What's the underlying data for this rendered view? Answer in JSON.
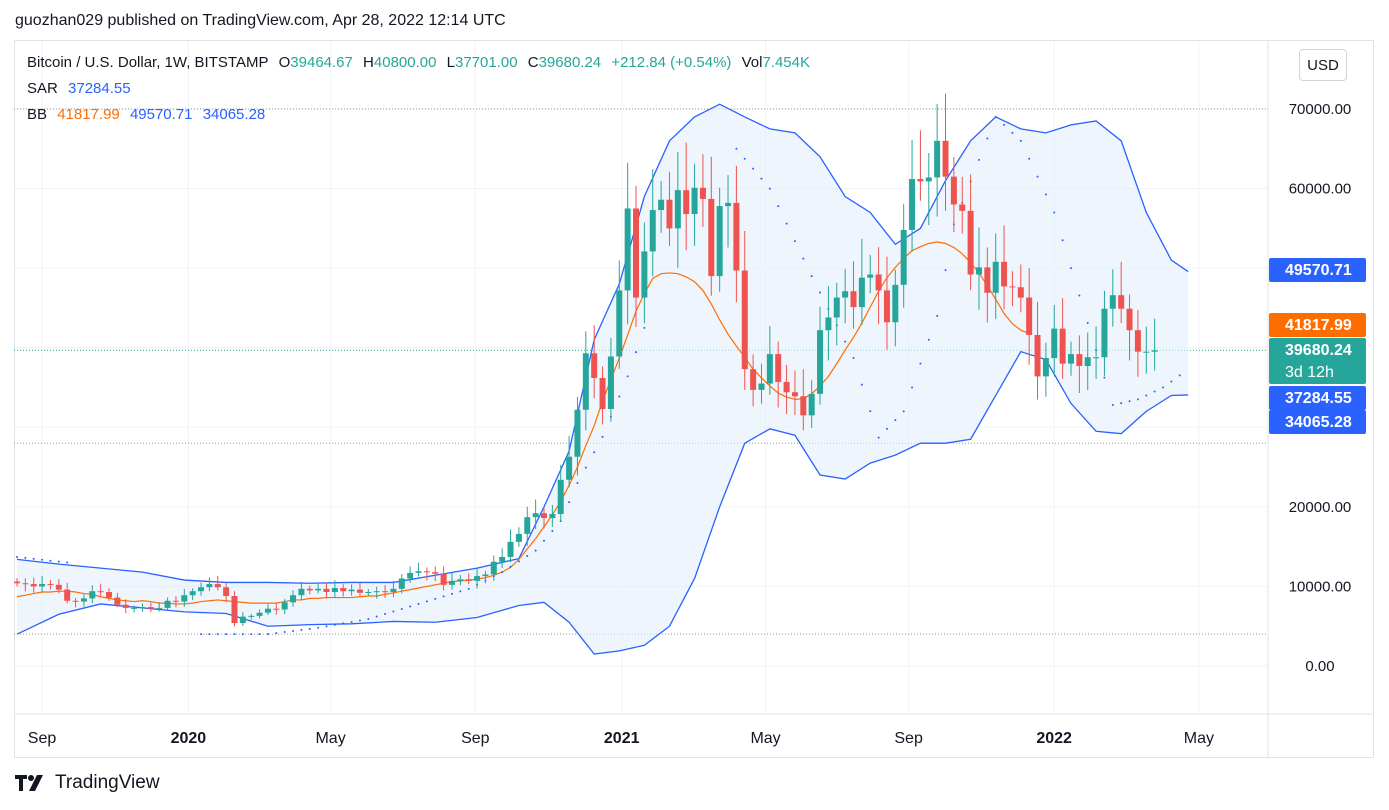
{
  "header": {
    "published": "guozhan029 published on TradingView.com, Apr 28, 2022 12:14 UTC"
  },
  "legend": {
    "symbol": "Bitcoin / U.S. Dollar, 1W, BITSTAMP",
    "o_label": "O",
    "o_value": "39464.67",
    "h_label": "H",
    "h_value": "40800.00",
    "l_label": "L",
    "l_value": "37701.00",
    "c_label": "C",
    "c_value": "39680.24",
    "change": "+212.84 (+0.54%)",
    "vol_label": "Vol",
    "vol_value": "7.454K",
    "sar_label": "SAR",
    "sar_value": "37284.55",
    "bb_label": "BB",
    "bb_mid": "41817.99",
    "bb_upper": "49570.71",
    "bb_lower": "34065.28"
  },
  "currency_button": "USD",
  "footer": {
    "brand": "TradingView"
  },
  "colors": {
    "up": "#26a69a",
    "down": "#ef5350",
    "bb_band": "#2962ff",
    "bb_basis": "#ff6d00",
    "sar": "#2962ff",
    "fill": "#e3eefa",
    "grid": "#f0f3fa",
    "axis_text": "#131722"
  },
  "chart_data": {
    "type": "candlestick",
    "interval": "1W",
    "y_ticks": [
      "70000.00",
      "60000.00",
      "20000.00",
      "10000.00",
      "0.00"
    ],
    "y_tick_values": [
      70000,
      60000,
      20000,
      10000,
      0
    ],
    "x_labels": [
      {
        "label": "Sep",
        "week": 0,
        "bold": false
      },
      {
        "label": "2020",
        "week": 17.5,
        "bold": true
      },
      {
        "label": "May",
        "week": 34.5,
        "bold": false
      },
      {
        "label": "Sep",
        "week": 51.8,
        "bold": false
      },
      {
        "label": "2021",
        "week": 69.3,
        "bold": true
      },
      {
        "label": "May",
        "week": 86.5,
        "bold": false
      },
      {
        "label": "Sep",
        "week": 103.6,
        "bold": false
      },
      {
        "label": "2022",
        "week": 121,
        "bold": true
      },
      {
        "label": "May",
        "week": 138.3,
        "bold": false
      }
    ],
    "price_tags": [
      {
        "text": "49570.71",
        "value": 49570.71,
        "color": "#2962ff",
        "text_color": "#ffffff"
      },
      {
        "text": "41817.99",
        "value": 41817.99,
        "color": "#ff6d00",
        "text_color": "#ffffff"
      },
      {
        "text": "39680.24",
        "sub": "3d 12h",
        "value": 39680.24,
        "color": "#26a69a",
        "text_color": "#ffffff"
      },
      {
        "text": "37284.55",
        "value": 37284.55,
        "color": "#2962ff",
        "text_color": "#ffffff"
      },
      {
        "text": "34065.28",
        "value": 34065.28,
        "color": "#2962ff",
        "text_color": "#ffffff"
      }
    ],
    "closes": [
      10400,
      10300,
      10000,
      10300,
      10200,
      9600,
      8200,
      8100,
      8500,
      9400,
      9300,
      8600,
      7700,
      7300,
      7300,
      7400,
      7200,
      7300,
      8200,
      8100,
      8900,
      9400,
      9900,
      10300,
      9900,
      8800,
      5400,
      6200,
      6300,
      6700,
      7200,
      7100,
      8000,
      8900,
      9700,
      9500,
      9700,
      9300,
      9800,
      9400,
      9600,
      9200,
      9300,
      9400,
      9300,
      9700,
      11000,
      11700,
      11900,
      11800,
      11600,
      10200,
      10700,
      10900,
      10700,
      11300,
      11500,
      13100,
      13700,
      15600,
      16600,
      18700,
      19200,
      18600,
      19100,
      23400,
      26300,
      32200,
      39300,
      36200,
      32300,
      38900,
      47200,
      57500,
      46300,
      52100,
      57300,
      58600,
      55000,
      59800,
      56800,
      60100,
      58700,
      49000,
      57800,
      58200,
      49700,
      37300,
      34700,
      35500,
      39200,
      35700,
      34400,
      33900,
      31500,
      34200,
      42200,
      43800,
      46300,
      47100,
      45100,
      48800,
      49200,
      47200,
      43200,
      47900,
      54800,
      61200,
      60900,
      61400,
      66000,
      61500,
      58000,
      57200,
      49200,
      50100,
      46900,
      50800,
      47700,
      47600,
      46300,
      41600,
      36400,
      38700,
      42400,
      38000,
      39200,
      37700,
      38800,
      38800,
      44900,
      46600,
      44900,
      42200,
      39500,
      39500,
      39680
    ],
    "bb": {
      "mid_values": [
        8700,
        8900,
        9100,
        9300,
        9300,
        9400,
        9400,
        9300,
        9100,
        9000,
        8700,
        8500,
        8300,
        8200,
        8100,
        8200,
        8100,
        7900,
        7900,
        7800,
        7800,
        7900,
        8100,
        8200,
        8300,
        8200,
        8100,
        8000,
        7900,
        7900,
        7900,
        7900,
        8100,
        8300,
        8300,
        8500,
        8500,
        8600,
        8600,
        8600,
        8600,
        8700,
        8800,
        8800,
        9000,
        9200,
        9400,
        9600,
        9800,
        10000,
        10200,
        10400,
        10600,
        10700,
        10800,
        10900,
        11100,
        11400,
        11800,
        12400,
        13400,
        14700,
        16000,
        17500,
        19000,
        20700,
        22700,
        25000,
        27700,
        30200,
        33300,
        36000,
        38700,
        41600,
        44600,
        46800,
        48700,
        49300,
        49400,
        49300,
        48900,
        48300,
        47200,
        45500,
        43500,
        41700,
        40200,
        38800,
        37300,
        36200,
        35200,
        34300,
        33800,
        33500,
        33600,
        34200,
        35200,
        36400,
        38000,
        39700,
        41300,
        43100,
        45100,
        47100,
        48800,
        50100,
        51200,
        52200,
        52700,
        53100,
        53300,
        53100,
        52600,
        51800,
        50700,
        49400,
        47800,
        46100,
        44300,
        43000,
        42200,
        41800
      ],
      "mid_start": 0,
      "upper": [
        [
          0,
          13400
        ],
        [
          5,
          12800
        ],
        [
          10,
          12300
        ],
        [
          15,
          11800
        ],
        [
          20,
          10800
        ],
        [
          25,
          10500
        ],
        [
          30,
          10500
        ],
        [
          35,
          10400
        ],
        [
          40,
          10500
        ],
        [
          45,
          10500
        ],
        [
          50,
          11400
        ],
        [
          55,
          12300
        ],
        [
          60,
          13500
        ],
        [
          63,
          20000
        ],
        [
          66,
          27000
        ],
        [
          69,
          41000
        ],
        [
          72,
          48000
        ],
        [
          75,
          59000
        ],
        [
          78,
          66000
        ],
        [
          81,
          69000
        ],
        [
          84,
          70600
        ],
        [
          87,
          69000
        ],
        [
          90,
          67500
        ],
        [
          93,
          67000
        ],
        [
          96,
          64000
        ],
        [
          99,
          59000
        ],
        [
          102,
          57000
        ],
        [
          105,
          53000
        ],
        [
          108,
          55000
        ],
        [
          111,
          61000
        ],
        [
          114,
          66000
        ],
        [
          117,
          69000
        ],
        [
          120,
          67500
        ],
        [
          123,
          67000
        ],
        [
          126,
          68000
        ],
        [
          129,
          68500
        ],
        [
          132,
          66000
        ],
        [
          135,
          57000
        ],
        [
          138,
          51000
        ],
        [
          140,
          49570
        ]
      ],
      "lower": [
        [
          0,
          4000
        ],
        [
          5,
          6500
        ],
        [
          10,
          7800
        ],
        [
          15,
          7300
        ],
        [
          20,
          6800
        ],
        [
          25,
          6600
        ],
        [
          30,
          5000
        ],
        [
          35,
          5200
        ],
        [
          40,
          5300
        ],
        [
          45,
          5600
        ],
        [
          50,
          5500
        ],
        [
          55,
          6100
        ],
        [
          60,
          7600
        ],
        [
          63,
          8000
        ],
        [
          66,
          5500
        ],
        [
          69,
          1500
        ],
        [
          72,
          1900
        ],
        [
          75,
          2600
        ],
        [
          78,
          5000
        ],
        [
          81,
          11000
        ],
        [
          84,
          20000
        ],
        [
          87,
          28000
        ],
        [
          90,
          29800
        ],
        [
          93,
          29000
        ],
        [
          96,
          24000
        ],
        [
          99,
          23500
        ],
        [
          102,
          25500
        ],
        [
          105,
          26500
        ],
        [
          108,
          28000
        ],
        [
          111,
          28000
        ],
        [
          114,
          28500
        ],
        [
          117,
          34000
        ],
        [
          120,
          39500
        ],
        [
          123,
          38500
        ],
        [
          126,
          33000
        ],
        [
          129,
          29500
        ],
        [
          132,
          29200
        ],
        [
          135,
          32000
        ],
        [
          138,
          34000
        ],
        [
          140,
          34065
        ]
      ]
    },
    "sar": [
      [
        0,
        13700
      ],
      [
        6,
        13000
      ],
      [
        22,
        4000
      ],
      [
        30,
        4000
      ],
      [
        36,
        4800
      ],
      [
        42,
        5900
      ],
      [
        48,
        7800
      ],
      [
        54,
        9700
      ],
      [
        58,
        11800
      ],
      [
        62,
        14500
      ],
      [
        65,
        18200
      ],
      [
        67,
        23000
      ],
      [
        70,
        28800
      ],
      [
        73,
        36400
      ],
      [
        75,
        42500
      ],
      [
        86,
        65000
      ],
      [
        90,
        60000
      ],
      [
        95,
        49000
      ],
      [
        100,
        38700
      ],
      [
        103,
        28700
      ],
      [
        106,
        32000
      ],
      [
        110,
        44000
      ],
      [
        112,
        55500
      ],
      [
        117,
        69000
      ],
      [
        120,
        66000
      ],
      [
        124,
        57000
      ],
      [
        126,
        50000
      ],
      [
        131,
        32800
      ],
      [
        134,
        33500
      ],
      [
        137,
        35000
      ],
      [
        140,
        37284
      ]
    ]
  }
}
